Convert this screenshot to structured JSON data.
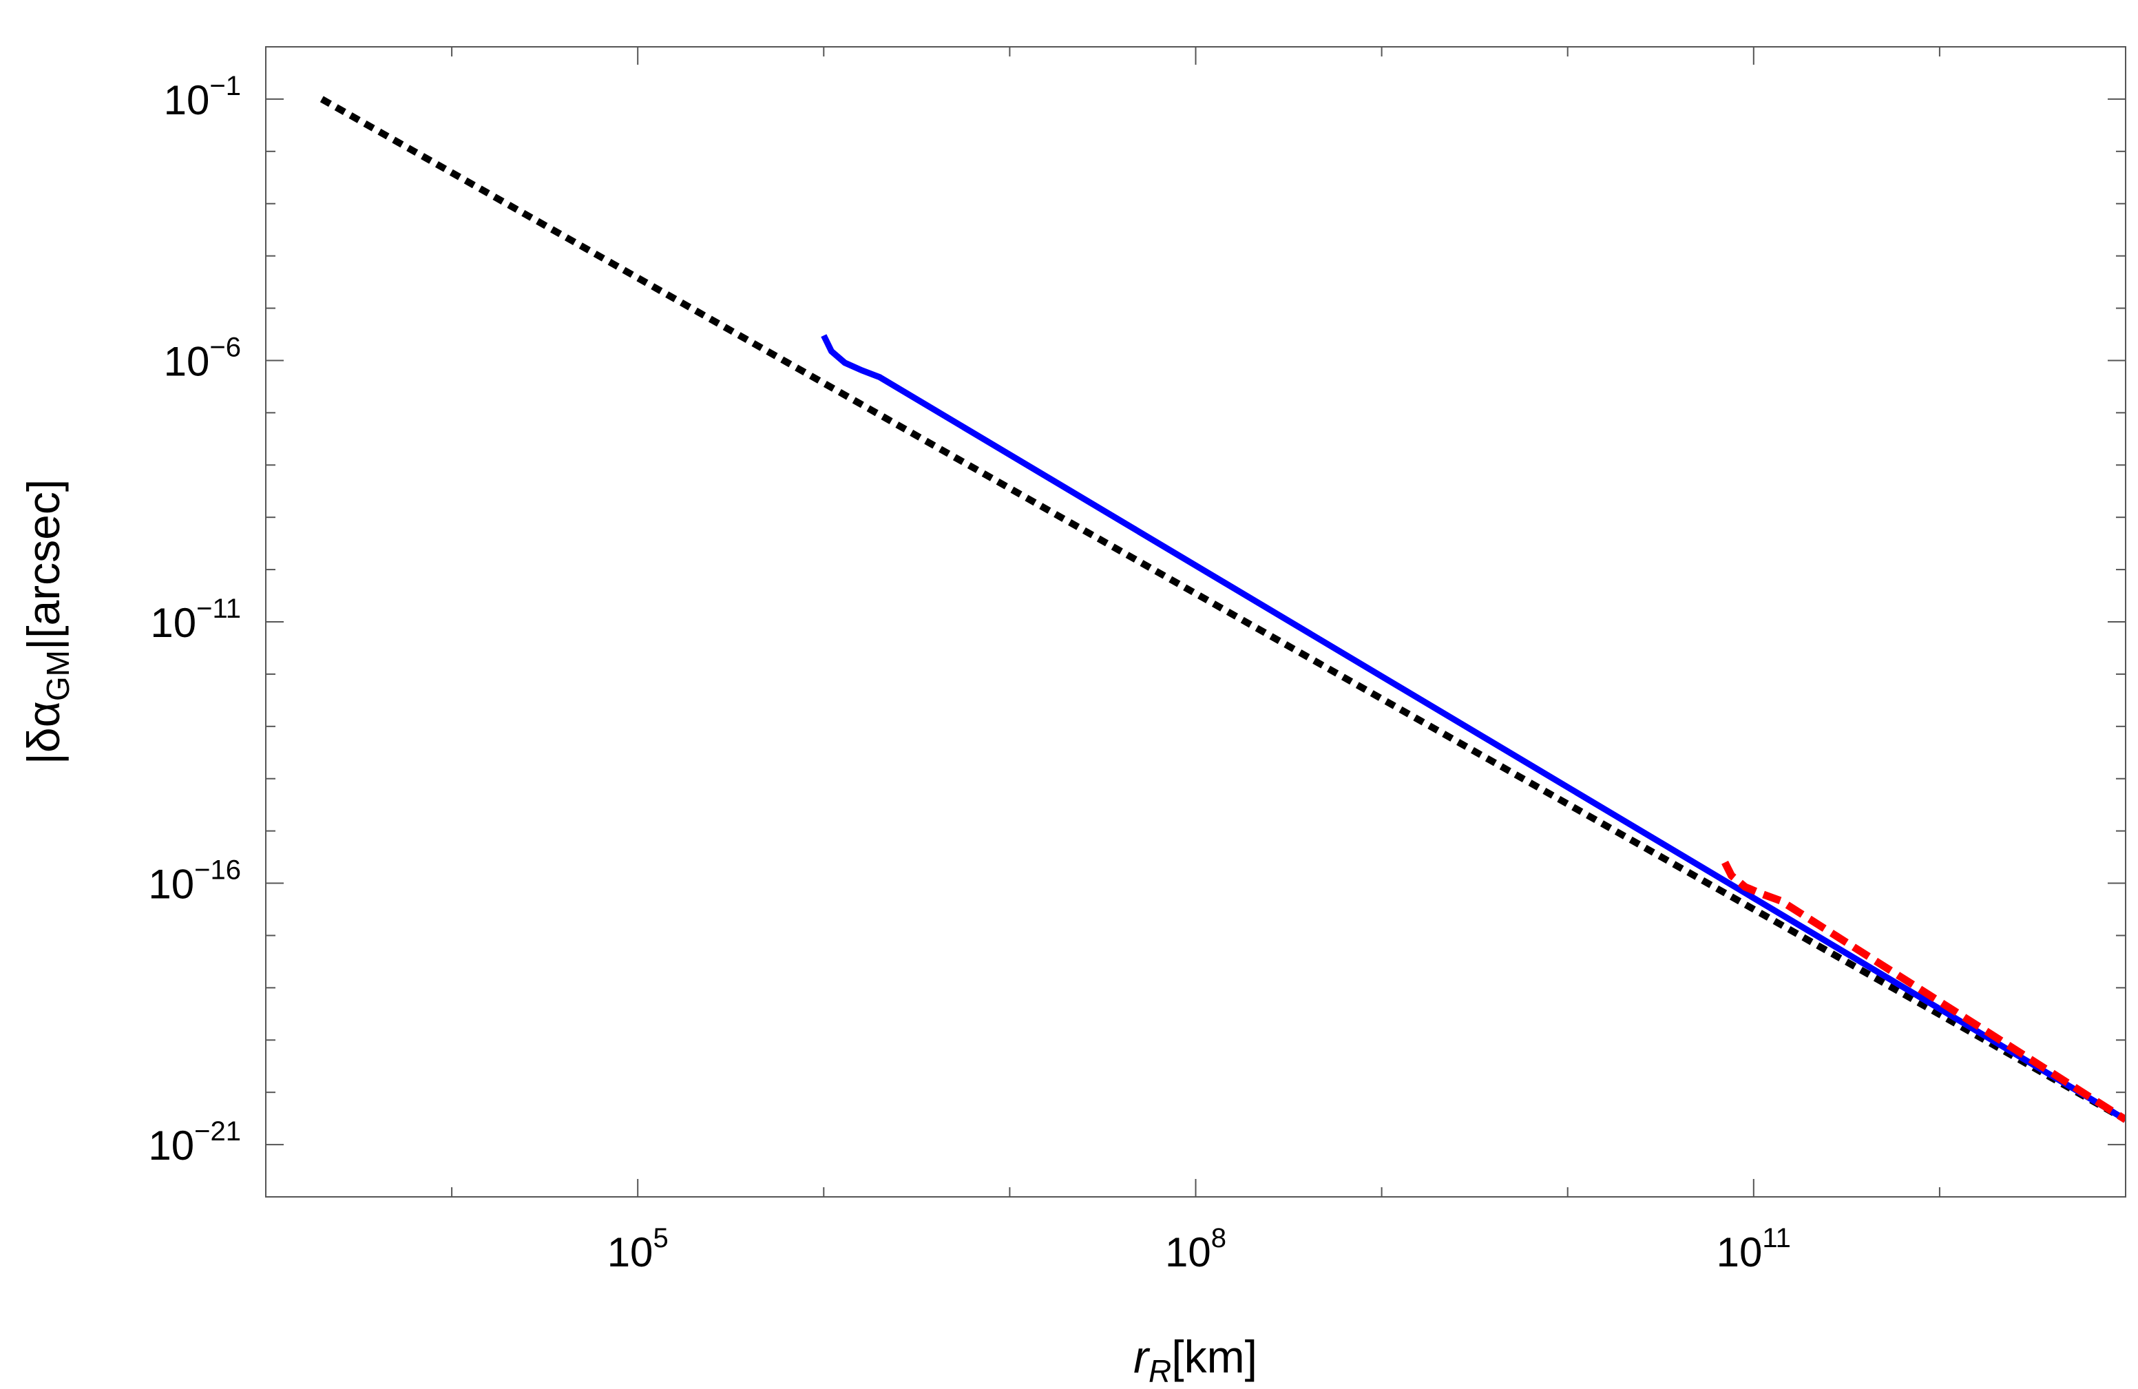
{
  "chart_data": {
    "type": "line",
    "xscale": "log",
    "yscale": "log",
    "xlim": [
      1000,
      10000000000000
    ],
    "ylim": [
      1e-22,
      1
    ],
    "xlabel": {
      "main": "r",
      "sub": "R",
      "unit": "[km]"
    },
    "ylabel": {
      "main": "|δα",
      "sub": "GM",
      "unit": "|[arcsec]"
    },
    "x_ticks": [
      {
        "label_base": "10",
        "label_exp": "5",
        "value": 100000
      },
      {
        "label_base": "10",
        "label_exp": "8",
        "value": 100000000
      },
      {
        "label_base": "10",
        "label_exp": "11",
        "value": 100000000000
      }
    ],
    "y_ticks": [
      {
        "label_base": "10",
        "label_exp": "−1",
        "value": 0.1
      },
      {
        "label_base": "10",
        "label_exp": "−6",
        "value": 1e-06
      },
      {
        "label_base": "10",
        "label_exp": "−11",
        "value": 1e-11
      },
      {
        "label_base": "10",
        "label_exp": "−16",
        "value": 1e-16
      },
      {
        "label_base": "10",
        "label_exp": "−21",
        "value": 1e-21
      }
    ],
    "series": [
      {
        "color": "#000000",
        "dash": "dotted",
        "points": [
          [
            2000,
            0.1
          ],
          [
            10000000000000,
            3e-21
          ]
        ]
      },
      {
        "color": "#0000ff",
        "dash": "solid",
        "points": [
          [
            1000000,
            3e-06
          ],
          [
            1100000,
            1.5e-06
          ],
          [
            1300000,
            9e-07
          ],
          [
            1600000,
            6.5e-07
          ],
          [
            2000000,
            4.8e-07
          ],
          [
            10000000000000,
            3e-21
          ]
        ]
      },
      {
        "color": "#ff0000",
        "dash": "dashed",
        "points": [
          [
            70000000000,
            2.5e-16
          ],
          [
            76000000000,
            1.4e-16
          ],
          [
            90000000000,
            8.5e-17
          ],
          [
            110000000000,
            6.3e-17
          ],
          [
            140000000000,
            4.6e-17
          ],
          [
            10000000000000,
            3e-21
          ]
        ]
      }
    ],
    "grid": false,
    "legend": "none"
  }
}
